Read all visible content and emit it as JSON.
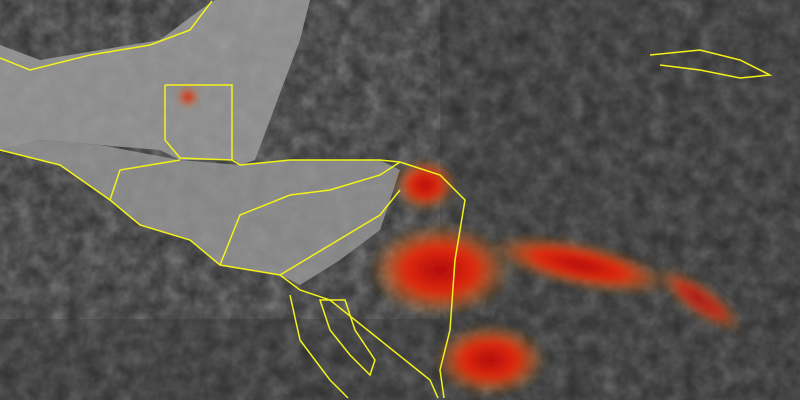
{
  "image": {
    "subject": "satellite-infrared-imagery",
    "colors": {
      "ocean": "#2c2c2c",
      "land": "#8a8a8a",
      "border": "#f2f21a",
      "cold_cloud_red": "#d81c10",
      "cold_cloud_orange": "#f08a1a",
      "cold_cloud_yellow": "#e8e23a",
      "cold_cloud_green": "#6cc46a",
      "cold_cloud_cyan": "#3cc4c8",
      "cold_cloud_blue": "#1a3aa0"
    }
  }
}
